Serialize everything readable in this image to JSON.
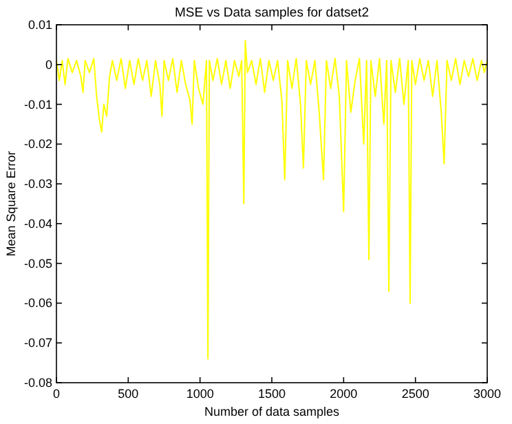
{
  "chart_data": {
    "type": "line",
    "title": "MSE vs Data samples for datset2",
    "xlabel": "Number of data samples",
    "ylabel": "Mean Square Error",
    "xlim": [
      0,
      3000
    ],
    "ylim": [
      -0.08,
      0.01
    ],
    "xticks": [
      0,
      500,
      1000,
      1500,
      2000,
      2500,
      3000
    ],
    "yticks": [
      -0.08,
      -0.07,
      -0.06,
      -0.05,
      -0.04,
      -0.03,
      -0.02,
      -0.01,
      0,
      0.01
    ],
    "grid": false,
    "x": [
      0,
      20,
      40,
      60,
      80,
      110,
      140,
      170,
      185,
      200,
      230,
      260,
      280,
      300,
      315,
      330,
      350,
      370,
      390,
      420,
      450,
      480,
      510,
      540,
      570,
      600,
      630,
      660,
      690,
      720,
      735,
      750,
      780,
      810,
      840,
      870,
      900,
      930,
      945,
      960,
      990,
      1020,
      1045,
      1055,
      1065,
      1090,
      1120,
      1150,
      1180,
      1210,
      1240,
      1270,
      1290,
      1305,
      1315,
      1330,
      1360,
      1390,
      1420,
      1450,
      1480,
      1510,
      1540,
      1570,
      1590,
      1610,
      1640,
      1670,
      1700,
      1720,
      1740,
      1770,
      1800,
      1830,
      1860,
      1880,
      1910,
      1940,
      1970,
      2000,
      2020,
      2050,
      2080,
      2110,
      2140,
      2160,
      2176,
      2190,
      2220,
      2250,
      2280,
      2300,
      2315,
      2330,
      2360,
      2390,
      2420,
      2450,
      2463,
      2475,
      2500,
      2530,
      2560,
      2590,
      2620,
      2650,
      2680,
      2700,
      2720,
      2750,
      2780,
      2810,
      2840,
      2870,
      2900,
      2930,
      2960,
      2980,
      3000
    ],
    "series": [
      {
        "color": "#ffff00",
        "values": [
          0.001,
          -0.004,
          0.001,
          -0.005,
          0.0015,
          -0.002,
          0.001,
          -0.003,
          -0.007,
          0.001,
          -0.002,
          0.0015,
          -0.008,
          -0.014,
          -0.017,
          -0.01,
          -0.013,
          -0.003,
          0.001,
          -0.004,
          0.0015,
          -0.006,
          0.001,
          -0.005,
          0.0015,
          -0.004,
          0.001,
          -0.008,
          0.001,
          -0.005,
          -0.013,
          0.001,
          -0.004,
          0.0015,
          -0.007,
          0.001,
          -0.005,
          -0.009,
          -0.015,
          0.001,
          -0.006,
          -0.01,
          0.001,
          -0.074,
          0.001,
          -0.004,
          0.0015,
          -0.005,
          0.001,
          -0.006,
          0.001,
          -0.003,
          0.001,
          -0.035,
          0.006,
          -0.002,
          0.001,
          -0.005,
          0.0015,
          -0.007,
          0.001,
          -0.004,
          0.001,
          -0.009,
          -0.029,
          0.001,
          -0.006,
          0.0015,
          -0.01,
          -0.026,
          0.001,
          -0.005,
          0.001,
          -0.012,
          -0.029,
          0.001,
          -0.006,
          0.0015,
          -0.008,
          -0.037,
          0.001,
          -0.012,
          -0.004,
          0.0015,
          -0.02,
          0.001,
          -0.049,
          0.001,
          -0.008,
          0.0015,
          -0.015,
          0.001,
          -0.057,
          0.001,
          -0.007,
          0.0015,
          -0.01,
          0.001,
          -0.06,
          0.001,
          -0.005,
          0.0015,
          -0.004,
          0.001,
          -0.008,
          0.001,
          -0.012,
          -0.025,
          0.001,
          -0.004,
          0.0015,
          -0.005,
          0.001,
          -0.003,
          0.0015,
          -0.004,
          0.001,
          -0.002,
          0.001
        ]
      }
    ]
  }
}
